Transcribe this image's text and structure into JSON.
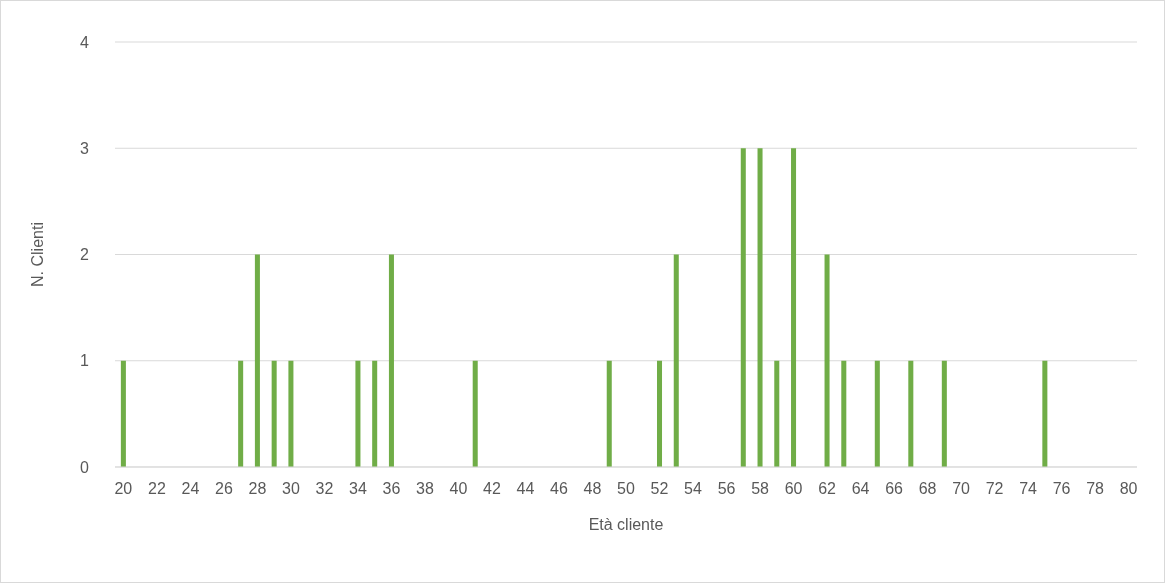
{
  "chart_data": {
    "type": "bar",
    "xlabel": "Età cliente",
    "ylabel": "N. Clienti",
    "categories": [
      "20",
      null,
      "22",
      null,
      "24",
      null,
      "26",
      null,
      "28",
      null,
      "30",
      null,
      "32",
      null,
      "34",
      null,
      "36",
      null,
      "38",
      null,
      "40",
      null,
      "42",
      null,
      "44",
      null,
      "46",
      null,
      "48",
      null,
      "50",
      null,
      "52",
      null,
      "54",
      null,
      "56",
      null,
      "58",
      null,
      "60",
      null,
      "62",
      null,
      "64",
      null,
      "66",
      null,
      "68",
      null,
      "70",
      null,
      "72",
      null,
      "74",
      null,
      "76",
      null,
      "78",
      null,
      "80"
    ],
    "values": [
      1,
      0,
      0,
      0,
      0,
      0,
      0,
      1,
      2,
      1,
      1,
      0,
      0,
      0,
      1,
      1,
      2,
      0,
      0,
      0,
      0,
      1,
      0,
      0,
      0,
      0,
      0,
      0,
      0,
      1,
      0,
      0,
      1,
      2,
      0,
      0,
      0,
      3,
      3,
      1,
      3,
      0,
      2,
      1,
      0,
      1,
      0,
      1,
      0,
      1,
      0,
      0,
      0,
      0,
      0,
      1,
      0,
      0,
      0,
      0,
      0
    ],
    "color": "#70ad47",
    "ylim": [
      0,
      4
    ],
    "yticks": [
      0,
      1,
      2,
      3,
      4
    ],
    "grid": "y"
  }
}
